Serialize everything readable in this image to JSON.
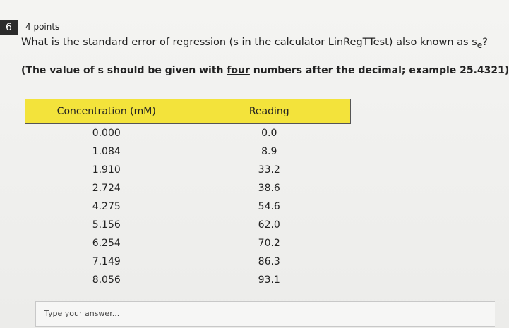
{
  "question": {
    "number": "6",
    "points": "4 points",
    "text": "What is the standard error of regression (s in the calculator LinRegTTest) also known as s",
    "subscript": "e",
    "text_end": "?",
    "instruction": {
      "before": "(The value of s should be given with ",
      "underlined": "four",
      "after": " numbers after the decimal; example 25.4321)"
    }
  },
  "table": {
    "headers": [
      "Concentration (mM)",
      "Reading"
    ],
    "rows": [
      [
        "0.000",
        "0.0"
      ],
      [
        "1.084",
        "8.9"
      ],
      [
        "1.910",
        "33.2"
      ],
      [
        "2.724",
        "38.6"
      ],
      [
        "4.275",
        "54.6"
      ],
      [
        "5.156",
        "62.0"
      ],
      [
        "6.254",
        "70.2"
      ],
      [
        "7.149",
        "86.3"
      ],
      [
        "8.056",
        "93.1"
      ]
    ]
  },
  "answer": {
    "placeholder": "Type your answer..."
  }
}
